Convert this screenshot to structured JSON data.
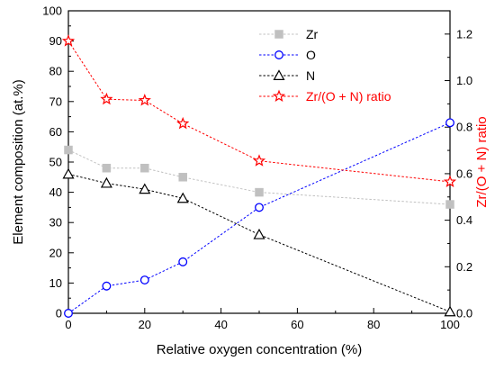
{
  "chart_data": {
    "type": "line",
    "title": "",
    "xlabel": "Relative oxygen concentration (%)",
    "ylabel": "Element composition (at.%)",
    "y2label": "Zr/(O + N) ratio",
    "xlim": [
      0,
      100
    ],
    "ylim": [
      0,
      100
    ],
    "y2lim": [
      0,
      1.3
    ],
    "x_ticks": [
      0,
      20,
      40,
      60,
      80,
      100
    ],
    "y_ticks": [
      0,
      10,
      20,
      30,
      40,
      50,
      60,
      70,
      80,
      90,
      100
    ],
    "y2_ticks": [
      0.0,
      0.2,
      0.4,
      0.6,
      0.8,
      1.0,
      1.2
    ],
    "x_tick_labels": [
      "0",
      "20",
      "40",
      "60",
      "80",
      "100"
    ],
    "y_tick_labels": [
      "0",
      "10",
      "20",
      "30",
      "40",
      "50",
      "60",
      "70",
      "80",
      "90",
      "100"
    ],
    "y2_tick_labels": [
      "0.0",
      "0.2",
      "0.4",
      "0.6",
      "0.8",
      "1.0",
      "1.2"
    ],
    "grid": false,
    "legend_position": "top-right",
    "x": [
      0,
      10,
      20,
      30,
      50,
      100
    ],
    "series": [
      {
        "name": "Zr",
        "axis": "left",
        "marker": "square",
        "color": "#c0c0c0",
        "values": [
          54,
          48,
          48,
          45,
          40,
          36
        ]
      },
      {
        "name": "O",
        "axis": "left",
        "marker": "circle",
        "color": "#0000ff",
        "values": [
          0,
          9,
          11,
          17,
          35,
          63
        ]
      },
      {
        "name": "N",
        "axis": "left",
        "marker": "triangle",
        "color": "#000000",
        "values": [
          46,
          43,
          41,
          38,
          26,
          0.5
        ]
      },
      {
        "name": "Zr/(O + N) ratio",
        "axis": "right",
        "marker": "star",
        "color": "#ff0000",
        "values": [
          1.17,
          0.92,
          0.915,
          0.815,
          0.655,
          0.565
        ]
      }
    ]
  }
}
